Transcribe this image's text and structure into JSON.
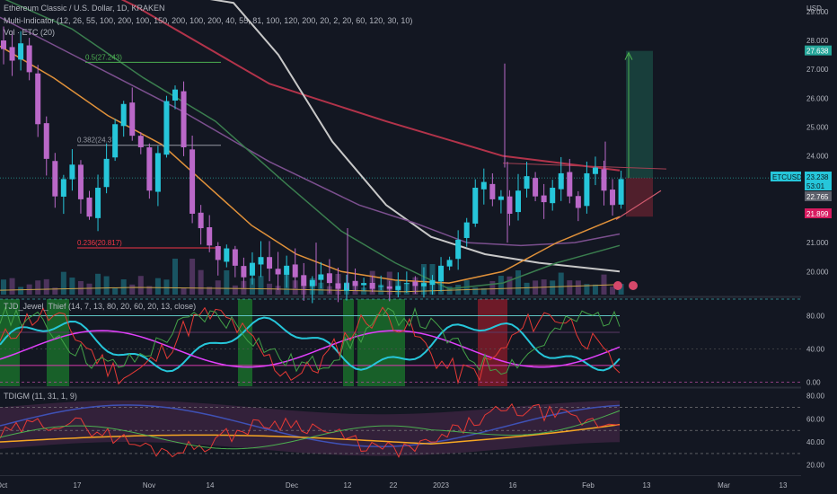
{
  "header": {
    "symbol_line": "Ethereum Classic / U.S. Dollar, 1D, KRAKEN",
    "indicator_line": "Multi-Indicator (12, 26, 55, 100, 200, 100, 150, 200, 100, 200, 40, 55, 81, 100, 120, 200, 20, 2, 20, 60, 120, 30, 10)",
    "volume_line": "Vol · ETC (20)"
  },
  "price_axis": {
    "currency": "USD",
    "ticks": [
      "29.000",
      "28.000",
      "27.000",
      "26.000",
      "25.000",
      "24.000",
      "23.000",
      "22.000",
      "21.000",
      "20.000"
    ],
    "labels": {
      "target": "27.638",
      "symbol": "ETCUSD",
      "last": "23.238",
      "countdown": "53:01",
      "stop_level": "22.765",
      "low_level": "21.899"
    }
  },
  "fib": {
    "level_0_5": "0.5(27.243)",
    "level_0_382": "0.382(24.37)",
    "level_0_236": "0.236(20.817)"
  },
  "osc1": {
    "label": "TJD_Jewel_Thief (14, 7, 13, 80, 20, 60, 20, 13, close)",
    "ticks": [
      "80.00",
      "40.00",
      "0.00"
    ]
  },
  "osc2": {
    "label": "TDIGM (11, 31, 1, 9)",
    "ticks": [
      "80.00",
      "60.00",
      "40.00",
      "20.00"
    ]
  },
  "time_axis": [
    "Oct",
    "17",
    "Nov",
    "14",
    "Dec",
    "12",
    "22",
    "2023",
    "16",
    "Feb",
    "13",
    "Mar",
    "13"
  ],
  "colors": {
    "background": "#131722",
    "candle_up": "#26c6da",
    "candle_down": "#ba68c8",
    "ma_red": "#b2334a",
    "ma_white": "#c8c8c8",
    "ma_purple": "#7b4f8e",
    "ma_green": "#3a7d4e",
    "ma_orange": "#e0913a",
    "highlight_green": "#1b7a2c",
    "highlight_red": "#8e1c2b"
  },
  "chart_data": {
    "type": "candlestick",
    "instrument": "ETCUSD",
    "timeframe": "1D",
    "ylim": [
      19.2,
      29.4
    ],
    "x_ticks": [
      "Oct",
      "17",
      "Nov",
      "14",
      "Dec",
      "12",
      "22",
      "2023",
      "16",
      "Feb",
      "13",
      "Mar",
      "13"
    ],
    "close_path": [
      27.7,
      27.3,
      27.9,
      26.9,
      25.1,
      23.9,
      22.6,
      23.2,
      23.7,
      22.5,
      21.9,
      22.9,
      23.9,
      25.1,
      25.8,
      24.7,
      24.3,
      22.8,
      24.1,
      25.9,
      26.3,
      24.3,
      22.0,
      21.5,
      20.9,
      20.4,
      20.8,
      20.2,
      19.8,
      20.3,
      20.5,
      20.1,
      19.9,
      20.2,
      19.8,
      19.5,
      19.7,
      19.9,
      19.6,
      19.4,
      19.6,
      19.5,
      19.6,
      19.4,
      19.5,
      19.4,
      19.5,
      19.6,
      19.5,
      19.6,
      19.7,
      20.2,
      20.4,
      21.1,
      21.7,
      22.9,
      23.1,
      22.5,
      22.6,
      22.0,
      22.8,
      23.3,
      22.6,
      22.4,
      22.9,
      23.4,
      22.6,
      22.2,
      23.4,
      23.6,
      22.8,
      22.3,
      23.2
    ],
    "moving_average_values_last": {
      "ma_red": 23.3,
      "ma_white": 20.0,
      "ma_purple": 21.3,
      "ma_green": 21.0
    },
    "fibonacci": [
      {
        "ratio": 0.5,
        "price": 27.243
      },
      {
        "ratio": 0.382,
        "price": 24.37
      },
      {
        "ratio": 0.236,
        "price": 20.817
      }
    ],
    "long_position": {
      "entry": 23.238,
      "target": 27.638,
      "stop": 22.765
    },
    "oscillators": [
      {
        "name": "TJD_Jewel_Thief",
        "range": [
          -5,
          100
        ],
        "levels": [
          80,
          60,
          20
        ]
      },
      {
        "name": "TDIGM",
        "range": [
          12,
          86
        ],
        "levels": [
          70,
          50,
          30
        ]
      }
    ]
  }
}
